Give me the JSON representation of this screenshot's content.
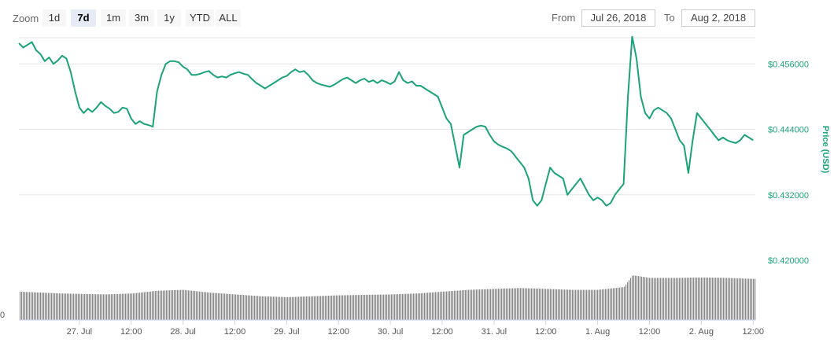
{
  "toolbar": {
    "zoom_label": "Zoom",
    "zoom_buttons": [
      "1d",
      "7d",
      "1m",
      "3m",
      "1y",
      "YTD",
      "ALL"
    ],
    "active_zoom": "7d",
    "from_label": "From",
    "from_value": "Jul 26, 2018",
    "to_label": "To",
    "to_value": "Aug 2, 2018"
  },
  "chart_data": {
    "type": "line",
    "ylabel": "Price (USD)",
    "ytick_labels": [
      "$0.420000",
      "$0.432000",
      "$0.444000",
      "$0.456000"
    ],
    "yticks": [
      0.42,
      0.432,
      0.444,
      0.456
    ],
    "ylim": [
      0.42,
      0.4608
    ],
    "xtick_labels": [
      "27. Jul",
      "12:00",
      "28. Jul",
      "12:00",
      "29. Jul",
      "12:00",
      "30. Jul",
      "12:00",
      "31. Jul",
      "12:00",
      "1. Aug",
      "12:00",
      "2. Aug",
      "12:00"
    ],
    "xticks": [
      18,
      30,
      42,
      54,
      66,
      78,
      90,
      102,
      114,
      126,
      138,
      150,
      162,
      174
    ],
    "xlim": [
      4,
      174.5
    ],
    "x_unit": "hours since Jul 26, 2018 00:00",
    "grid": true,
    "line_color": "#1ba27a",
    "series": [
      {
        "name": "Price (USD)",
        "points": [
          [
            4,
            0.4598
          ],
          [
            5,
            0.459
          ],
          [
            6,
            0.4595
          ],
          [
            7,
            0.46
          ],
          [
            8,
            0.4585
          ],
          [
            9,
            0.4578
          ],
          [
            10,
            0.4565
          ],
          [
            11,
            0.4572
          ],
          [
            12,
            0.456
          ],
          [
            13,
            0.4566
          ],
          [
            14,
            0.4575
          ],
          [
            15,
            0.457
          ],
          [
            16,
            0.4545
          ],
          [
            17,
            0.451
          ],
          [
            18,
            0.448
          ],
          [
            19,
            0.447
          ],
          [
            20,
            0.4478
          ],
          [
            21,
            0.4472
          ],
          [
            22,
            0.448
          ],
          [
            23,
            0.449
          ],
          [
            24,
            0.4483
          ],
          [
            25,
            0.4478
          ],
          [
            26,
            0.447
          ],
          [
            27,
            0.4472
          ],
          [
            28,
            0.448
          ],
          [
            29,
            0.4478
          ],
          [
            30,
            0.446
          ],
          [
            31,
            0.445
          ],
          [
            32,
            0.4455
          ],
          [
            33,
            0.445
          ],
          [
            34,
            0.4448
          ],
          [
            35,
            0.4445
          ],
          [
            36,
            0.451
          ],
          [
            37,
            0.454
          ],
          [
            38,
            0.456
          ],
          [
            39,
            0.4565
          ],
          [
            40,
            0.4565
          ],
          [
            41,
            0.4563
          ],
          [
            42,
            0.4555
          ],
          [
            43,
            0.455
          ],
          [
            44,
            0.454
          ],
          [
            45,
            0.454
          ],
          [
            46,
            0.4542
          ],
          [
            47,
            0.4545
          ],
          [
            48,
            0.4547
          ],
          [
            49,
            0.454
          ],
          [
            50,
            0.4535
          ],
          [
            51,
            0.4537
          ],
          [
            52,
            0.4535
          ],
          [
            53,
            0.454
          ],
          [
            54,
            0.4543
          ],
          [
            55,
            0.4545
          ],
          [
            56,
            0.4542
          ],
          [
            57,
            0.454
          ],
          [
            58,
            0.4532
          ],
          [
            59,
            0.4525
          ],
          [
            60,
            0.452
          ],
          [
            61,
            0.4515
          ],
          [
            62,
            0.452
          ],
          [
            63,
            0.4525
          ],
          [
            64,
            0.453
          ],
          [
            65,
            0.4535
          ],
          [
            66,
            0.4538
          ],
          [
            67,
            0.4545
          ],
          [
            68,
            0.455
          ],
          [
            69,
            0.4545
          ],
          [
            70,
            0.4547
          ],
          [
            71,
            0.454
          ],
          [
            72,
            0.453
          ],
          [
            73,
            0.4525
          ],
          [
            74,
            0.4522
          ],
          [
            75,
            0.452
          ],
          [
            76,
            0.4518
          ],
          [
            77,
            0.4522
          ],
          [
            78,
            0.4527
          ],
          [
            79,
            0.4532
          ],
          [
            80,
            0.4535
          ],
          [
            81,
            0.453
          ],
          [
            82,
            0.4525
          ],
          [
            83,
            0.453
          ],
          [
            84,
            0.4533
          ],
          [
            85,
            0.4527
          ],
          [
            86,
            0.453
          ],
          [
            87,
            0.4525
          ],
          [
            88,
            0.453
          ],
          [
            89,
            0.4527
          ],
          [
            90,
            0.4523
          ],
          [
            91,
            0.4528
          ],
          [
            92,
            0.4545
          ],
          [
            93,
            0.453
          ],
          [
            94,
            0.4525
          ],
          [
            95,
            0.4528
          ],
          [
            96,
            0.452
          ],
          [
            97,
            0.452
          ],
          [
            98,
            0.4515
          ],
          [
            99,
            0.451
          ],
          [
            100,
            0.4505
          ],
          [
            101,
            0.45
          ],
          [
            102,
            0.448
          ],
          [
            103,
            0.446
          ],
          [
            104,
            0.445
          ],
          [
            105,
            0.441
          ],
          [
            106,
            0.437
          ],
          [
            107,
            0.443
          ],
          [
            108,
            0.4435
          ],
          [
            109,
            0.444
          ],
          [
            110,
            0.4445
          ],
          [
            111,
            0.4447
          ],
          [
            112,
            0.4445
          ],
          [
            113,
            0.443
          ],
          [
            114,
            0.4418
          ],
          [
            115,
            0.4412
          ],
          [
            116,
            0.4408
          ],
          [
            117,
            0.4405
          ],
          [
            118,
            0.44
          ],
          [
            119,
            0.439
          ],
          [
            120,
            0.438
          ],
          [
            121,
            0.437
          ],
          [
            122,
            0.435
          ],
          [
            123,
            0.431
          ],
          [
            124,
            0.43
          ],
          [
            125,
            0.431
          ],
          [
            126,
            0.434
          ],
          [
            127,
            0.437
          ],
          [
            128,
            0.436
          ],
          [
            129,
            0.4355
          ],
          [
            130,
            0.435
          ],
          [
            131,
            0.432
          ],
          [
            132,
            0.433
          ],
          [
            133,
            0.434
          ],
          [
            134,
            0.435
          ],
          [
            135,
            0.4335
          ],
          [
            136,
            0.432
          ],
          [
            137,
            0.431
          ],
          [
            138,
            0.4315
          ],
          [
            139,
            0.431
          ],
          [
            140,
            0.43
          ],
          [
            141,
            0.4305
          ],
          [
            142,
            0.432
          ],
          [
            143,
            0.433
          ],
          [
            144,
            0.434
          ],
          [
            145,
            0.45
          ],
          [
            146,
            0.461
          ],
          [
            147,
            0.457
          ],
          [
            148,
            0.45
          ],
          [
            149,
            0.447
          ],
          [
            150,
            0.446
          ],
          [
            151,
            0.4475
          ],
          [
            152,
            0.448
          ],
          [
            153,
            0.4475
          ],
          [
            154,
            0.447
          ],
          [
            155,
            0.446
          ],
          [
            156,
            0.444
          ],
          [
            157,
            0.442
          ],
          [
            158,
            0.441
          ],
          [
            159,
            0.436
          ],
          [
            160,
            0.442
          ],
          [
            161,
            0.447
          ],
          [
            162,
            0.446
          ],
          [
            163,
            0.445
          ],
          [
            164,
            0.444
          ],
          [
            165,
            0.443
          ],
          [
            166,
            0.442
          ],
          [
            167,
            0.4425
          ],
          [
            168,
            0.442
          ],
          [
            169,
            0.4417
          ],
          [
            170,
            0.4415
          ],
          [
            171,
            0.442
          ],
          [
            172,
            0.443
          ],
          [
            173,
            0.4425
          ],
          [
            174,
            0.442
          ]
        ]
      }
    ],
    "volume": {
      "axis_label": "0",
      "color": "#888888",
      "points": [
        [
          4,
          0.62
        ],
        [
          14,
          0.58
        ],
        [
          24,
          0.56
        ],
        [
          30,
          0.58
        ],
        [
          36,
          0.64
        ],
        [
          42,
          0.66
        ],
        [
          48,
          0.6
        ],
        [
          54,
          0.56
        ],
        [
          60,
          0.52
        ],
        [
          66,
          0.5
        ],
        [
          72,
          0.52
        ],
        [
          78,
          0.54
        ],
        [
          84,
          0.55
        ],
        [
          90,
          0.56
        ],
        [
          96,
          0.58
        ],
        [
          102,
          0.62
        ],
        [
          108,
          0.66
        ],
        [
          114,
          0.68
        ],
        [
          120,
          0.7
        ],
        [
          126,
          0.68
        ],
        [
          132,
          0.66
        ],
        [
          138,
          0.66
        ],
        [
          144,
          0.72
        ],
        [
          146,
          0.98
        ],
        [
          150,
          0.92
        ],
        [
          156,
          0.92
        ],
        [
          162,
          0.93
        ],
        [
          168,
          0.92
        ],
        [
          174,
          0.9
        ]
      ]
    }
  }
}
